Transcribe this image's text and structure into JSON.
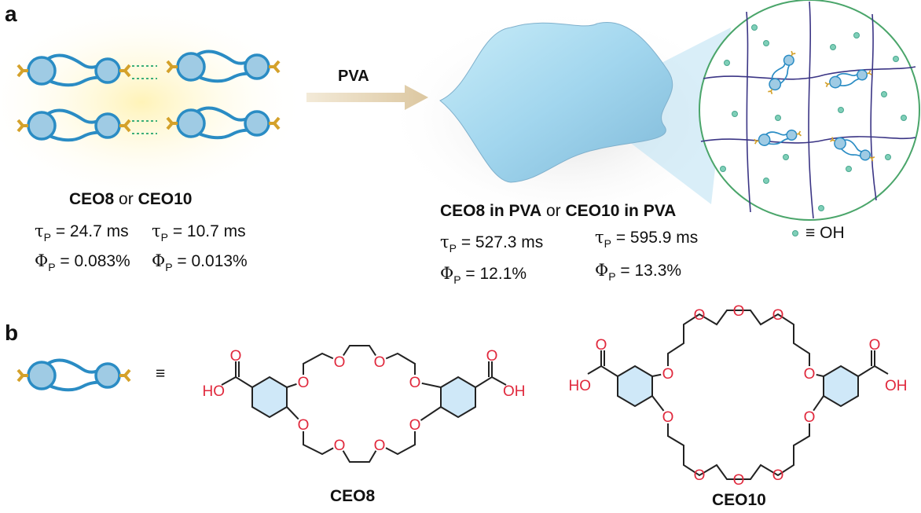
{
  "panels": {
    "a": "a",
    "b": "b"
  },
  "arrow_label": "PVA",
  "free": {
    "name1": "CEO8",
    "or": "or",
    "name2": "CEO10",
    "tau_sym": "τ",
    "phi_sym": "Φ",
    "sub": "P",
    "tau1": "= 24.7 ms",
    "tau2": "= 10.7 ms",
    "phi1": "= 0.083%",
    "phi2": "= 0.013%"
  },
  "pva": {
    "name1": "CEO8 in PVA",
    "or": "or",
    "name2": "CEO10 in PVA",
    "tau1": "= 527.3 ms",
    "tau2": "= 595.9 ms",
    "phi1": "= 12.1%",
    "phi2": "= 13.3%"
  },
  "legend": {
    "equiv": "≡",
    "oh": "OH"
  },
  "structures": {
    "equiv": "≡",
    "atom_O": "O",
    "atom_HO": "HO",
    "atom_OH": "OH",
    "ceo8_label": "CEO8",
    "ceo10_label": "CEO10"
  },
  "colors": {
    "molecule": "#2a8cc4",
    "molecule_fill": "#9fcbe4",
    "carboxyl": "#d4a12a",
    "hbond": "#3cae7a",
    "oxygen": "#e0283c",
    "network": "#3b3585",
    "oh_dot": "#7fcfb8",
    "circle": "#4aa56a",
    "film": "#a9d9ee"
  }
}
